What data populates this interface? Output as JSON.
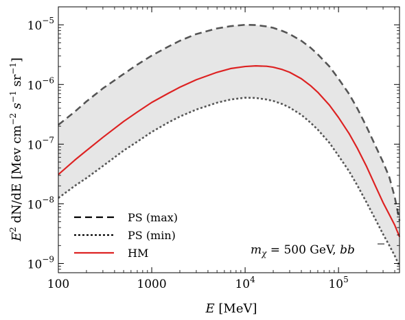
{
  "chart_data": {
    "type": "line",
    "x_scale": "log",
    "y_scale": "log",
    "xlim": [
      100,
      450000
    ],
    "ylim": [
      7e-10,
      2e-05
    ],
    "xticks": [
      {
        "value": 100,
        "label": "100",
        "sup": ""
      },
      {
        "value": 1000,
        "label": "1000",
        "sup": ""
      },
      {
        "value": 10000,
        "label": "10",
        "sup": "4"
      },
      {
        "value": 100000,
        "label": "10",
        "sup": "5"
      }
    ],
    "yticks": [
      {
        "value": 1e-09,
        "label": "10",
        "sup": "−9"
      },
      {
        "value": 1e-08,
        "label": "10",
        "sup": "−8"
      },
      {
        "value": 1e-07,
        "label": "10",
        "sup": "−7"
      },
      {
        "value": 1e-06,
        "label": "10",
        "sup": "−6"
      },
      {
        "value": 1e-05,
        "label": "10",
        "sup": "−5"
      }
    ],
    "xlabel": {
      "var": "E",
      "unit": " [MeV]"
    },
    "ylabel": {
      "pre": "E",
      "pre_sup": "2",
      "mid": " dN/dE",
      "unit_a": "  [Mev cm",
      "sup_a": "−2",
      "unit_b": " s",
      "sup_b": "−1",
      "unit_c": " sr",
      "sup_c": "−1",
      "unit_d": "]"
    },
    "annotation": {
      "m": "m",
      "sub": "χ",
      "rest": " = 500 GeV, ",
      "b1": "b",
      "b2": "b"
    },
    "band_fill": "#e6e6e6",
    "legend_position": "bottom-left",
    "series": [
      {
        "name": "PS (max)",
        "style": "dashed",
        "color": "#555555",
        "x": [
          100,
          150,
          200,
          300,
          500,
          700,
          1000,
          1500,
          2000,
          3000,
          5000,
          7000,
          10000,
          13000,
          17000,
          20000,
          25000,
          30000,
          40000,
          50000,
          60000,
          80000,
          100000,
          130000,
          160000,
          200000,
          250000,
          300000,
          350000,
          400000,
          450000
        ],
        "y": [
          2.1e-07,
          3.5e-07,
          5.2e-07,
          8.6e-07,
          1.5e-06,
          2.15e-06,
          3.05e-06,
          4.3e-06,
          5.4e-06,
          7e-06,
          8.7e-06,
          9.5e-06,
          1e-05,
          9.9e-06,
          9.4e-06,
          8.9e-06,
          7.9e-06,
          7e-06,
          5.4e-06,
          4.15e-06,
          3.2e-06,
          2e-06,
          1.25e-06,
          6.9e-07,
          3.9e-07,
          1.95e-07,
          9.2e-08,
          5e-08,
          2.8e-08,
          1.3e-08,
          5.2e-09
        ]
      },
      {
        "name": "PS (min)",
        "style": "dotted",
        "color": "#555555",
        "x": [
          100,
          150,
          200,
          300,
          500,
          700,
          1000,
          1500,
          2000,
          3000,
          5000,
          7000,
          10000,
          13000,
          17000,
          20000,
          25000,
          30000,
          40000,
          50000,
          60000,
          80000,
          100000,
          130000,
          160000,
          200000,
          250000,
          300000,
          350000,
          400000,
          450000
        ],
        "y": [
          1.25e-08,
          2e-08,
          2.7e-08,
          4.3e-08,
          7.8e-08,
          1.1e-07,
          1.6e-07,
          2.3e-07,
          2.9e-07,
          3.8e-07,
          4.95e-07,
          5.6e-07,
          6e-07,
          5.95e-07,
          5.6e-07,
          5.3e-07,
          4.7e-07,
          4.1e-07,
          3.1e-07,
          2.3e-07,
          1.75e-07,
          1.05e-07,
          6.4e-08,
          3.5e-08,
          2e-08,
          1.05e-08,
          5.4e-09,
          3.1e-09,
          2e-09,
          1.35e-09,
          9e-10
        ]
      },
      {
        "name": "HM",
        "style": "solid",
        "color": "#dd2222",
        "x": [
          100,
          150,
          200,
          300,
          500,
          700,
          1000,
          1500,
          2000,
          3000,
          5000,
          7000,
          10000,
          13000,
          17000,
          20000,
          25000,
          30000,
          40000,
          50000,
          60000,
          80000,
          100000,
          130000,
          160000,
          200000,
          250000,
          300000,
          350000,
          400000,
          450000
        ],
        "y": [
          3.1e-08,
          5.4e-08,
          7.8e-08,
          1.3e-07,
          2.4e-07,
          3.45e-07,
          5e-07,
          7.1e-07,
          9e-07,
          1.2e-06,
          1.6e-06,
          1.85e-06,
          2e-06,
          2.05e-06,
          2.02e-06,
          1.95e-06,
          1.78e-06,
          1.6e-06,
          1.25e-06,
          9.6e-07,
          7.4e-07,
          4.5e-07,
          2.8e-07,
          1.5e-07,
          8.4e-08,
          4.2e-08,
          1.95e-08,
          1.05e-08,
          6.6e-09,
          4.4e-09,
          2.8e-09
        ]
      }
    ]
  }
}
